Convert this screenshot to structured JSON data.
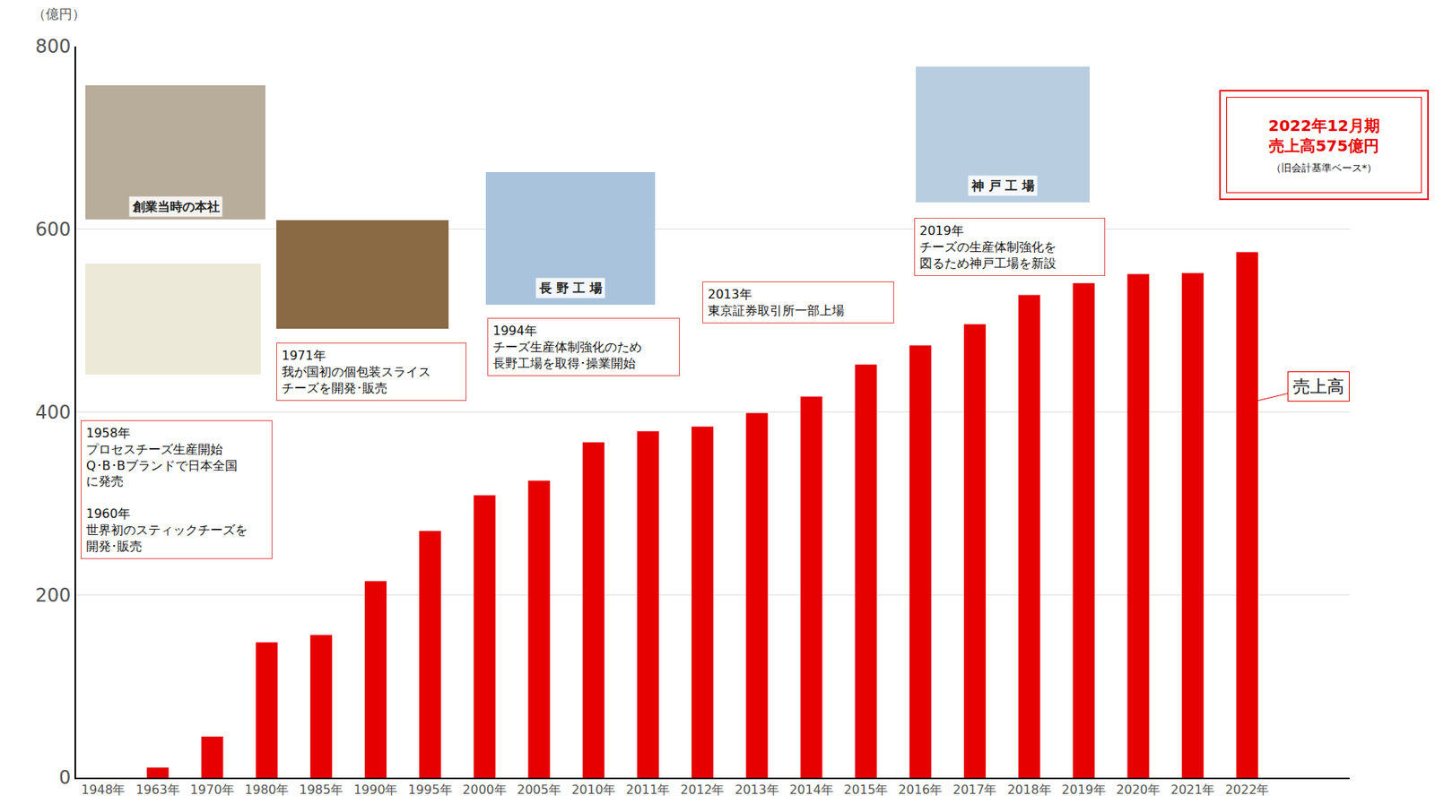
{
  "chart_data": {
    "type": "bar",
    "categories": [
      "1948年",
      "1963年",
      "1970年",
      "1980年",
      "1985年",
      "1990年",
      "1995年",
      "2000年",
      "2005年",
      "2010年",
      "2011年",
      "2012年",
      "2013年",
      "2014年",
      "2015年",
      "2016年",
      "2017年",
      "2018年",
      "2019年",
      "2020年",
      "2021年",
      "2022年"
    ],
    "series": [
      {
        "name": "売上高",
        "color": "#e60000",
        "values": [
          0,
          11,
          45,
          148,
          156,
          215,
          270,
          309,
          325,
          367,
          379,
          384,
          399,
          417,
          452,
          473,
          496,
          528,
          541,
          551,
          552,
          575
        ]
      }
    ],
    "ylim": [
      0,
      800
    ],
    "yticks": [
      0,
      200,
      400,
      600,
      800
    ],
    "grid": true,
    "y_label": "（億円）",
    "milestones": [
      "1958年\nプロセスチーズ生産開始\nQ･B･Bブランドで日本全国\nに発売\n\n1960年\n世界初のスティックチーズを\n開発･販売",
      "1971年\n我が国初の個包装スライス\nチーズを開発･販売",
      "1994年\nチーズ生産体制強化のため\n長野工場を取得･操業開始",
      "2013年\n東京証券取引所一部上場",
      "2019年\nチーズの生産体制強化を\n図るため神戸工場を新設"
    ],
    "photos": [
      "創業当時の本社",
      "長 野 工 場",
      "神 戸 工 場"
    ],
    "highlight": [
      "2022年12月期",
      "売上高575億円",
      "（旧会計基準ベース*）"
    ]
  }
}
